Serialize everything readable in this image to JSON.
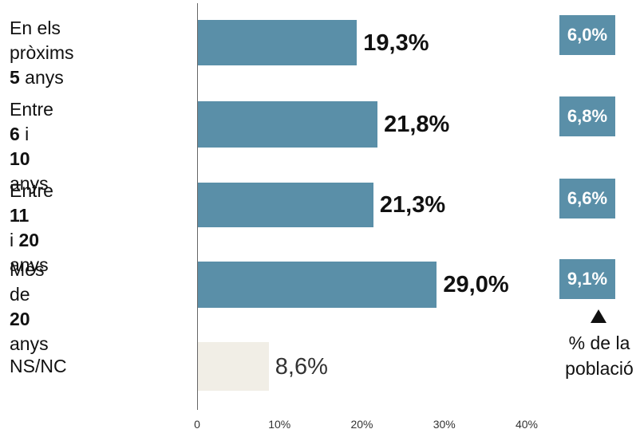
{
  "chart_data": {
    "type": "bar",
    "orientation": "horizontal",
    "categories": [
      {
        "parts": [
          {
            "t": "En els pròxims",
            "b": false
          },
          {
            "br": true
          },
          {
            "t": "5",
            "b": true
          },
          {
            "t": " anys",
            "b": false
          }
        ]
      },
      {
        "parts": [
          {
            "t": "Entre ",
            "b": false
          },
          {
            "t": "6",
            "b": true
          },
          {
            "t": " i ",
            "b": false
          },
          {
            "t": "10",
            "b": true
          },
          {
            "br": true
          },
          {
            "t": "anys",
            "b": false
          }
        ]
      },
      {
        "parts": [
          {
            "t": "Entre ",
            "b": false
          },
          {
            "t": "11",
            "b": true
          },
          {
            "br": true
          },
          {
            "t": "i ",
            "b": false
          },
          {
            "t": "20",
            "b": true
          },
          {
            "t": " anys",
            "b": false
          }
        ]
      },
      {
        "parts": [
          {
            "t": "Més de",
            "b": false
          },
          {
            "br": true
          },
          {
            "t": "20",
            "b": true
          },
          {
            "t": " anys",
            "b": false
          }
        ]
      },
      {
        "parts": [
          {
            "t": "NS/NC",
            "b": false
          }
        ]
      }
    ],
    "values": [
      19.3,
      21.8,
      21.3,
      29.0,
      8.6
    ],
    "value_labels": [
      "19,3%",
      "21,8%",
      "21,3%",
      "29,0%",
      "8,6%"
    ],
    "population_pct": [
      6.0,
      6.8,
      6.6,
      9.1
    ],
    "population_labels": [
      "6,0%",
      "6,8%",
      "6,6%",
      "9,1%"
    ],
    "population_note": "% de la població",
    "xlim": [
      0,
      40
    ],
    "ticks": [
      0,
      10,
      20,
      30,
      40
    ],
    "tick_labels": [
      "0",
      "10%",
      "20%",
      "30%",
      "40%"
    ],
    "colors": {
      "bar": "#5a8fa8",
      "nsnc_bar": "#f1eee6",
      "pop_box": "#5a8fa8"
    },
    "grid": false
  }
}
